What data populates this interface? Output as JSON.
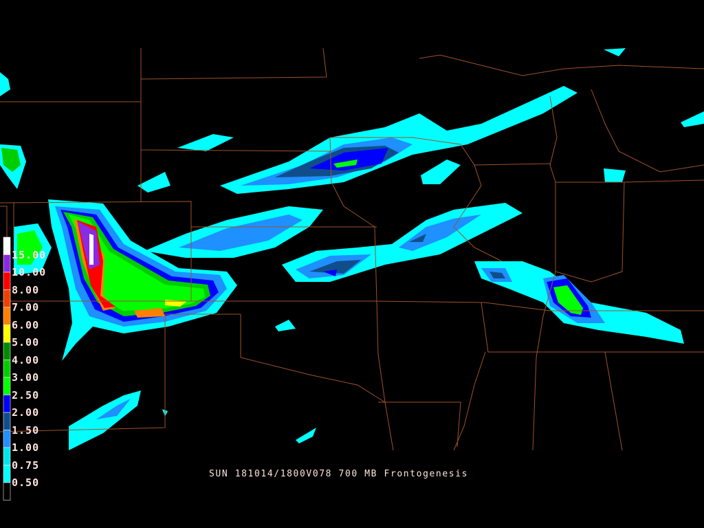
{
  "title": "SUN 181014/1800V078 700 MB Frontogenesis",
  "legend": {
    "labels": [
      "15.00",
      "10.00",
      "8.00",
      "7.00",
      "6.00",
      "5.00",
      "4.00",
      "3.00",
      "2.50",
      "2.00",
      "1.50",
      "1.00",
      "0.75",
      "0.50"
    ],
    "colors_top_to_bottom": [
      "#ffffff",
      "#8a2be2",
      "#ff0000",
      "#ee4000",
      "#ff8000",
      "#ffff00",
      "#008b00",
      "#00cd00",
      "#00ff00",
      "#0000ff",
      "#104e8b",
      "#1e90ff",
      "#00e5ee",
      "#00ffff",
      "#000000"
    ]
  },
  "colors": {
    "background": "#000000",
    "borders": "#a0522d",
    "text": "#ffe4e1"
  }
}
